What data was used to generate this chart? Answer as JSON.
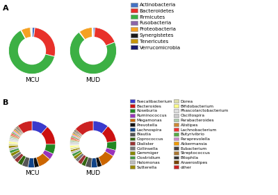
{
  "phylum_labels": [
    "Actinobacteria",
    "Bacteroidetes",
    "Firmicutes",
    "Fusobacteria",
    "Proteobacteria",
    "Synergistetes",
    "Tenericutes",
    "Verrucomicrobia"
  ],
  "phylum_colors": [
    "#4472c4",
    "#e8312a",
    "#3cb044",
    "#8b64a8",
    "#f4a123",
    "#1a1a1a",
    "#c8950a",
    "#1a1a6e"
  ],
  "MCU_phylum": [
    0.02,
    0.27,
    0.63,
    0.004,
    0.065,
    0.002,
    0.008,
    0.001
  ],
  "MUD_phylum": [
    0.012,
    0.175,
    0.695,
    0.004,
    0.09,
    0.002,
    0.004,
    0.002
  ],
  "genus_labels": [
    "Faecalibacterium",
    "Bacteroides",
    "Roseburia",
    "Ruminococcus",
    "Megamonas",
    "Prevotella",
    "Lachnospira",
    "Blautia",
    "Coprococcus",
    "Dialister",
    "Collinsella",
    "Gemmiger",
    "Clostridium",
    "Halomonas",
    "Sutterella",
    "Dorea",
    "Bifidobacterium",
    "Phascolarctobacterium",
    "Oscillospira",
    "Parabacteroides",
    "Alistipes",
    "Lachnobacterium",
    "Butyrivibrio",
    "Paraprevolella",
    "Akkermansia",
    "Eubacterium",
    "Streptococcus",
    "Bilophila",
    "Anaerostipes",
    "other"
  ],
  "genus_colors": [
    "#3a3acc",
    "#cc1111",
    "#228822",
    "#9933bb",
    "#cc6600",
    "#111111",
    "#114488",
    "#555555",
    "#336611",
    "#993333",
    "#777777",
    "#888800",
    "#449944",
    "#bbbbbb",
    "#998800",
    "#ddddaa",
    "#ffff88",
    "#dddddd",
    "#cccccc",
    "#aaccaa",
    "#cc8833",
    "#ee3333",
    "#55aa44",
    "#cc88cc",
    "#ee9900",
    "#444444",
    "#aa7733",
    "#333333",
    "#774400",
    "#cc2222"
  ],
  "MCU_genus": [
    0.11,
    0.13,
    0.065,
    0.042,
    0.085,
    0.032,
    0.042,
    0.042,
    0.032,
    0.03,
    0.026,
    0.022,
    0.02,
    0.016,
    0.016,
    0.015,
    0.014,
    0.013,
    0.012,
    0.012,
    0.011,
    0.01,
    0.01,
    0.01,
    0.01,
    0.008,
    0.008,
    0.008,
    0.008,
    0.1
  ],
  "MUD_genus": [
    0.095,
    0.105,
    0.055,
    0.038,
    0.09,
    0.028,
    0.038,
    0.036,
    0.026,
    0.026,
    0.022,
    0.019,
    0.018,
    0.013,
    0.013,
    0.013,
    0.013,
    0.011,
    0.011,
    0.011,
    0.009,
    0.009,
    0.009,
    0.009,
    0.009,
    0.007,
    0.007,
    0.007,
    0.007,
    0.12
  ]
}
